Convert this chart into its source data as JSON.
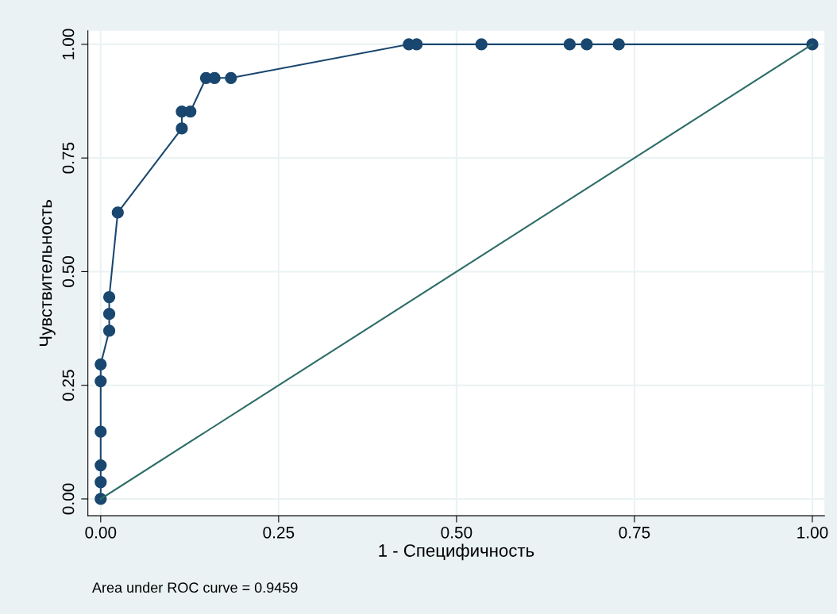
{
  "chart_data": {
    "type": "line",
    "xlabel": "1 - Специфичность",
    "ylabel": "Чувствительность",
    "xlim": [
      -0.018,
      1.017
    ],
    "ylim": [
      -0.037,
      1.03
    ],
    "xticks": [
      {
        "value": 0,
        "label": "0.00"
      },
      {
        "value": 0.25,
        "label": "0.25"
      },
      {
        "value": 0.5,
        "label": "0.50"
      },
      {
        "value": 0.75,
        "label": "0.75"
      },
      {
        "value": 1,
        "label": "1.00"
      }
    ],
    "yticks": [
      {
        "value": 0,
        "label": "0.00"
      },
      {
        "value": 0.25,
        "label": "0.25"
      },
      {
        "value": 0.5,
        "label": "0.50"
      },
      {
        "value": 0.75,
        "label": "0.75"
      },
      {
        "value": 1,
        "label": "1.00"
      }
    ],
    "grid": true,
    "legend": false,
    "annotations": [
      "Area under ROC curve = 0.9459"
    ],
    "series": [
      {
        "color": "#1a476f",
        "marker": "circle",
        "x": [
          0,
          0,
          0,
          0,
          0,
          0,
          0.012,
          0.012,
          0.012,
          0.024,
          0.114,
          0.114,
          0.126,
          0.148,
          0.16,
          0.183,
          0.433,
          0.444,
          0.535,
          0.659,
          0.683,
          0.728,
          1
        ],
        "values": [
          0,
          0.037,
          0.074,
          0.148,
          0.259,
          0.296,
          0.37,
          0.407,
          0.444,
          0.63,
          0.815,
          0.852,
          0.852,
          0.926,
          0.926,
          0.926,
          1,
          1,
          1,
          1,
          1,
          1,
          1
        ]
      },
      {
        "color": "#2d6d66",
        "marker": "none",
        "x": [
          0,
          1
        ],
        "values": [
          0,
          1
        ]
      }
    ]
  }
}
